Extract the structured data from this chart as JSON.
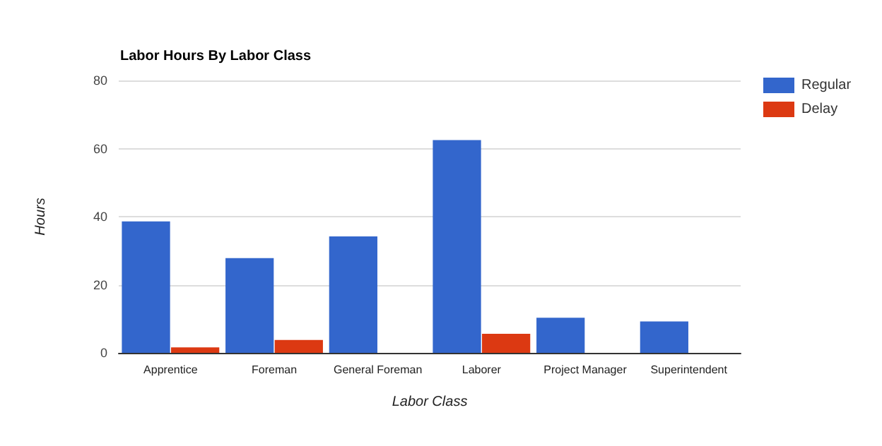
{
  "chart_data": {
    "type": "bar",
    "title": "Labor Hours By Labor Class",
    "xlabel": "Labor Class",
    "ylabel": "Hours",
    "categories": [
      "Apprentice",
      "Foreman",
      "General Foreman",
      "Laborer",
      "Project Manager",
      "Superintendent"
    ],
    "series": [
      {
        "name": "Regular",
        "color": "#3366cc",
        "values": [
          38.6,
          27.8,
          34.2,
          62.5,
          10.3,
          9.2
        ]
      },
      {
        "name": "Delay",
        "color": "#dc3912",
        "values": [
          1.6,
          3.8,
          null,
          5.6,
          null,
          null
        ]
      }
    ],
    "ylim": [
      0,
      80
    ],
    "yticks": [
      0,
      20,
      40,
      60,
      80
    ],
    "grid": "y",
    "legend": "top right"
  }
}
